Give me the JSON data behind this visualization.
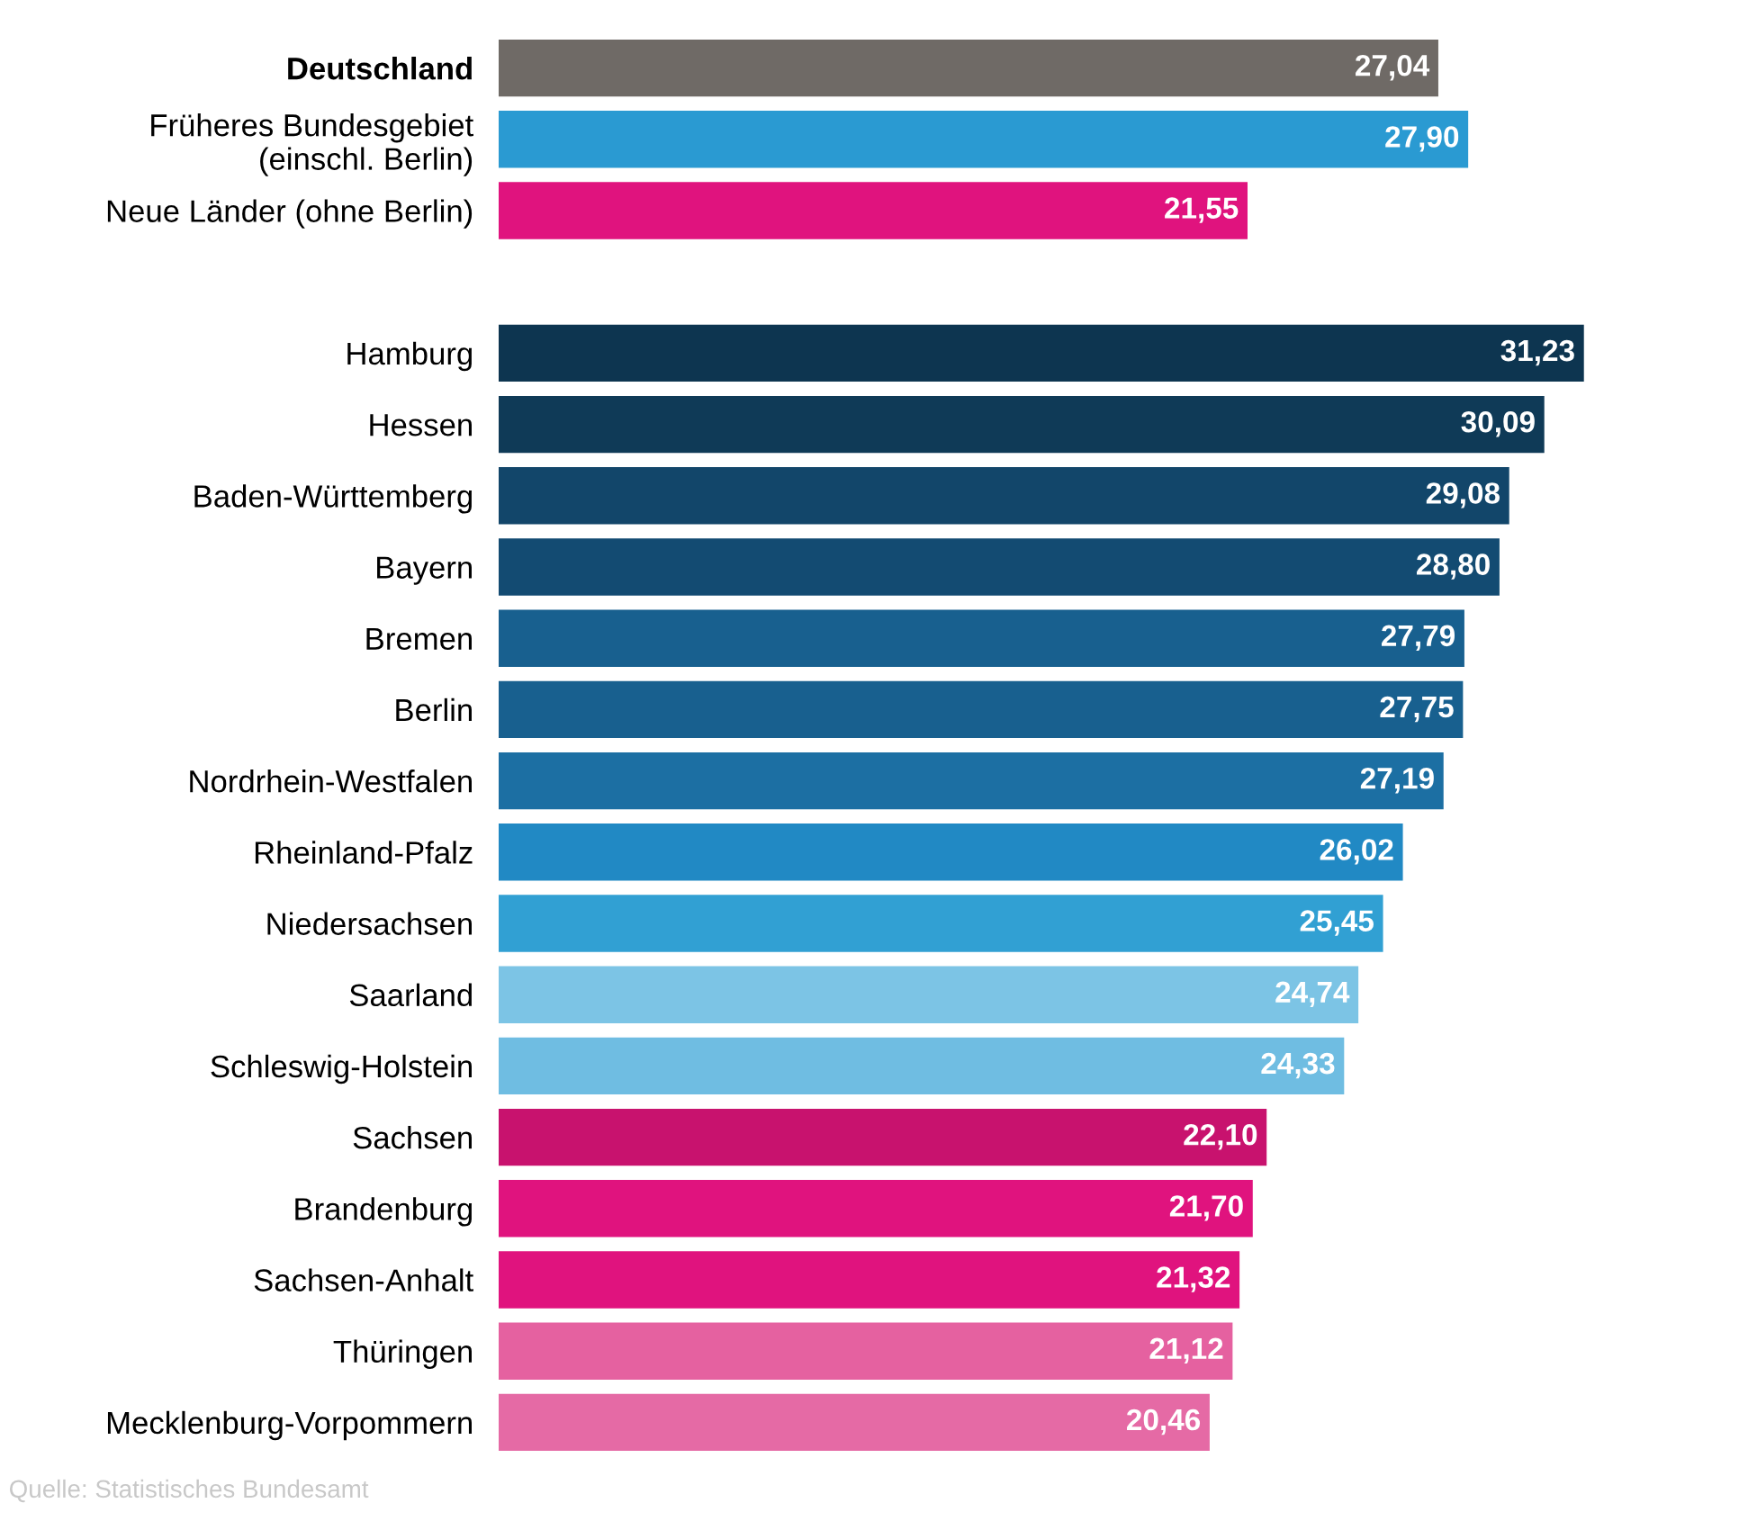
{
  "chart_data": {
    "type": "bar",
    "orientation": "horizontal",
    "categories": [
      "Deutschland",
      "Früheres Bundesgebiet\n(einschl. Berlin)",
      "Neue Länder (ohne Berlin)",
      null,
      "Hamburg",
      "Hessen",
      "Baden-Württemberg",
      "Bayern",
      "Bremen",
      "Berlin",
      "Nordrhein-Westfalen",
      "Rheinland-Pfalz",
      "Niedersachsen",
      "Saarland",
      "Schleswig-Holstein",
      "Sachsen",
      "Brandenburg",
      "Sachsen-Anhalt",
      "Thüringen",
      "Mecklenburg-Vorpommern"
    ],
    "values": [
      27.04,
      27.9,
      21.55,
      null,
      31.23,
      30.09,
      29.08,
      28.8,
      27.79,
      27.75,
      27.19,
      26.02,
      25.45,
      24.74,
      24.33,
      22.1,
      21.7,
      21.32,
      21.12,
      20.46
    ],
    "value_labels": [
      "27,04",
      "27,90",
      "21,55",
      null,
      "31,23",
      "30,09",
      "29,08",
      "28,80",
      "27,79",
      "27,75",
      "27,19",
      "26,02",
      "25,45",
      "24,74",
      "24,33",
      "22,10",
      "21,70",
      "21,32",
      "21,12",
      "20,46"
    ],
    "colors": [
      "#6f6a66",
      "#2a9ad2",
      "#e0137e",
      "#ffffff",
      "#0d3550",
      "#0f3a57",
      "#12466a",
      "#134b72",
      "#18608f",
      "#18608f",
      "#1c6fa3",
      "#2189c4",
      "#31a0d3",
      "#7cc4e5",
      "#6fbde2",
      "#c8126e",
      "#e0137e",
      "#e0137e",
      "#e561a0",
      "#e56aa5"
    ],
    "grid": false,
    "annotations": [
      "Quelle: Statistisches Bundesamt"
    ]
  }
}
